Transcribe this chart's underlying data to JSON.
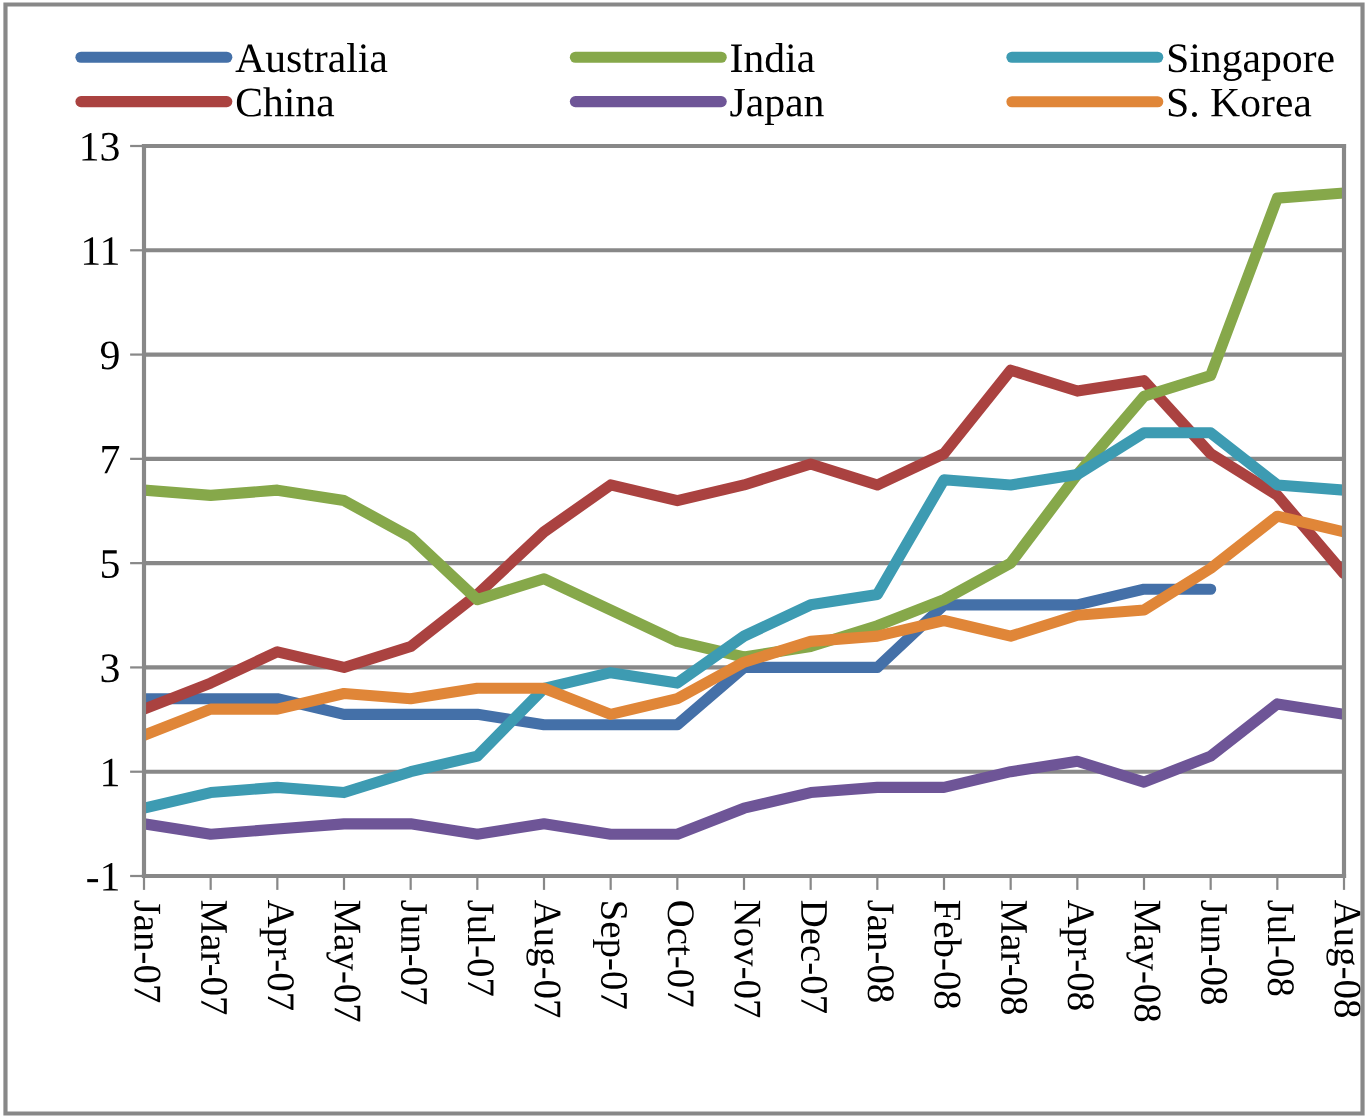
{
  "chart_data": {
    "type": "line",
    "categories": [
      "Jan-07",
      "Mar-07",
      "Apr-07",
      "May-07",
      "Jun-07",
      "Jul-07",
      "Aug-07",
      "Sep-07",
      "Oct-07",
      "Nov-07",
      "Dec-07",
      "Jan-08",
      "Feb-08",
      "Mar-08",
      "Apr-08",
      "May-08",
      "Jun-08",
      "Jul-08",
      "Aug-08"
    ],
    "series": [
      {
        "name": "Australia",
        "color": "#4470a8",
        "values": [
          2.4,
          2.4,
          2.4,
          2.1,
          2.1,
          2.1,
          1.9,
          1.9,
          1.9,
          3.0,
          3.0,
          3.0,
          4.2,
          4.2,
          4.2,
          4.5,
          4.5,
          null,
          null
        ]
      },
      {
        "name": "China",
        "color": "#aa4240",
        "values": [
          2.2,
          2.7,
          3.3,
          3.0,
          3.4,
          4.4,
          5.6,
          6.5,
          6.2,
          6.5,
          6.9,
          6.5,
          7.1,
          8.7,
          8.3,
          8.5,
          7.1,
          6.3,
          4.8
        ]
      },
      {
        "name": "India",
        "color": "#86a84a",
        "values": [
          6.4,
          6.3,
          6.4,
          6.2,
          5.5,
          4.3,
          4.7,
          4.1,
          3.5,
          3.2,
          3.4,
          3.8,
          4.3,
          5.0,
          6.7,
          8.2,
          8.6,
          12.0,
          12.1
        ]
      },
      {
        "name": "Japan",
        "color": "#6e5597",
        "values": [
          0.0,
          -0.2,
          -0.1,
          0.0,
          0.0,
          -0.2,
          0.0,
          -0.2,
          -0.2,
          0.3,
          0.6,
          0.7,
          0.7,
          1.0,
          1.2,
          0.8,
          1.3,
          2.3,
          2.1
        ]
      },
      {
        "name": "Singapore",
        "color": "#3d9bb2",
        "values": [
          0.3,
          0.6,
          0.7,
          0.6,
          1.0,
          1.3,
          2.6,
          2.9,
          2.7,
          3.6,
          4.2,
          4.4,
          6.6,
          6.5,
          6.7,
          7.5,
          7.5,
          6.5,
          6.4
        ]
      },
      {
        "name": "S. Korea",
        "color": "#e08638",
        "values": [
          1.7,
          2.2,
          2.2,
          2.5,
          2.4,
          2.6,
          2.6,
          2.1,
          2.4,
          3.1,
          3.5,
          3.6,
          3.9,
          3.6,
          4.0,
          4.1,
          4.9,
          5.9,
          5.6
        ]
      }
    ],
    "ylim": [
      -1,
      13
    ],
    "yticks": [
      -1,
      1,
      3,
      5,
      7,
      9,
      11,
      13
    ],
    "grid": "y",
    "legend": "top",
    "marker": "none",
    "line_style": "solid"
  }
}
